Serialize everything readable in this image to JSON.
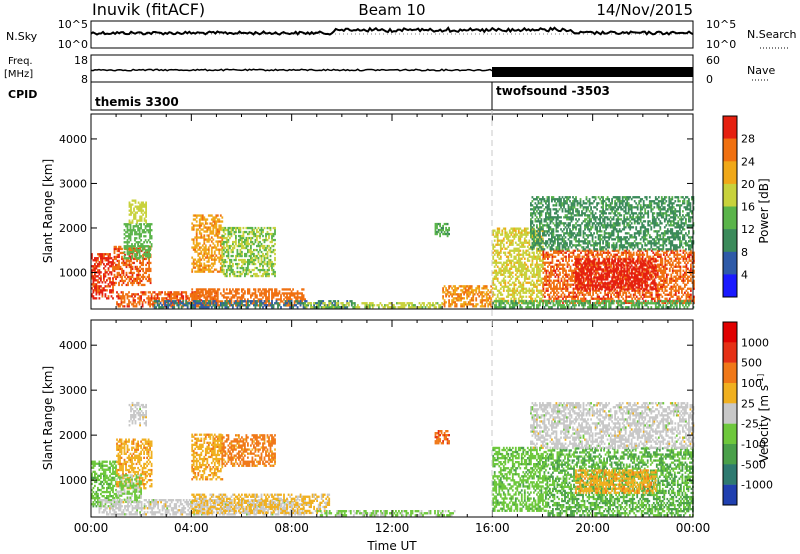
{
  "header": {
    "station": "Inuvik (fitACF)",
    "beam": "Beam 10",
    "date": "14/Nov/2015"
  },
  "strip_panels": {
    "noise": {
      "left_label": "N.Sky",
      "right_label": "N.Search",
      "left_ticks": [
        "10^5",
        "10^0"
      ],
      "right_ticks": [
        "10^5",
        "10^0"
      ]
    },
    "freq": {
      "left_label_1": "Freq.",
      "left_label_2": "[MHz]",
      "right_label": "Nave",
      "left_ticks": [
        "18",
        "8"
      ],
      "right_ticks": [
        "60",
        "0"
      ]
    },
    "cpid": {
      "label": "CPID",
      "segments": [
        "themis 3300",
        "twofsound -3503"
      ]
    }
  },
  "x_axis": {
    "label": "Time UT",
    "ticks": [
      "00:00",
      "04:00",
      "08:00",
      "12:00",
      "16:00",
      "20:00",
      "00:00"
    ]
  },
  "chart_data": [
    {
      "type": "heatmap",
      "title": "",
      "xlabel": "Time UT",
      "ylabel": "Slant Range [km]",
      "xlim": [
        0,
        24
      ],
      "ylim": [
        180,
        4560
      ],
      "yticks": [
        "1000",
        "2000",
        "3000",
        "4000"
      ],
      "colorbar": {
        "label": "Power [dB]",
        "range": [
          0,
          32
        ],
        "ticks": [
          "4",
          "8",
          "12",
          "16",
          "20",
          "24",
          "28"
        ],
        "colors": [
          "#1a1aff",
          "#2e5aa8",
          "#3b8a5a",
          "#5ab44a",
          "#c8d23c",
          "#f0a818",
          "#f07010",
          "#e52010"
        ]
      },
      "regions": [
        {
          "t0": 0.0,
          "t1": 0.9,
          "r0": 400,
          "r1": 1400,
          "value": 29
        },
        {
          "t0": 0.9,
          "t1": 2.4,
          "r0": 700,
          "r1": 1600,
          "value": 27
        },
        {
          "t0": 1.3,
          "t1": 2.4,
          "r0": 1300,
          "r1": 2100,
          "value": 14
        },
        {
          "t0": 1.5,
          "t1": 2.2,
          "r0": 2100,
          "r1": 2600,
          "value": 18
        },
        {
          "t0": 4.0,
          "t1": 5.2,
          "r0": 1000,
          "r1": 2300,
          "value": 23
        },
        {
          "t0": 5.2,
          "t1": 7.3,
          "r0": 900,
          "r1": 2000,
          "value": 16
        },
        {
          "t0": 1.0,
          "t1": 5.0,
          "r0": 220,
          "r1": 560,
          "value": 27
        },
        {
          "t0": 4.0,
          "t1": 8.5,
          "r0": 240,
          "r1": 620,
          "value": 26
        },
        {
          "t0": 2.5,
          "t1": 10.5,
          "r0": 200,
          "r1": 380,
          "value": 8
        },
        {
          "t0": 8.5,
          "t1": 14.0,
          "r0": 200,
          "r1": 330,
          "value": 17
        },
        {
          "t0": 14.0,
          "t1": 16.0,
          "r0": 220,
          "r1": 700,
          "value": 24
        },
        {
          "t0": 13.7,
          "t1": 14.3,
          "r0": 1800,
          "r1": 2100,
          "value": 13
        },
        {
          "t0": 16.0,
          "t1": 18.0,
          "r0": 300,
          "r1": 2000,
          "value": 19
        },
        {
          "t0": 18.0,
          "t1": 24.0,
          "r0": 300,
          "r1": 1500,
          "value": 27
        },
        {
          "t0": 19.3,
          "t1": 22.5,
          "r0": 600,
          "r1": 1300,
          "value": 31
        },
        {
          "t0": 17.5,
          "t1": 24.0,
          "r0": 1500,
          "r1": 2700,
          "value": 11
        },
        {
          "t0": 16.0,
          "t1": 24.0,
          "r0": 200,
          "r1": 380,
          "value": 13
        }
      ]
    },
    {
      "type": "heatmap",
      "title": "",
      "xlabel": "Time UT",
      "ylabel": "Slant Range [km]",
      "xlim": [
        0,
        24
      ],
      "ylim": [
        180,
        4560
      ],
      "yticks": [
        "1000",
        "2000",
        "3000",
        "4000"
      ],
      "colorbar": {
        "label": "Velocity [m s^-1]",
        "range": [
          -1200,
          1200
        ],
        "ticks": [
          "1000",
          "500",
          "100",
          "25",
          "-25",
          "-100",
          "-500",
          "-1000"
        ],
        "colors": [
          "#2040b0",
          "#2e7a70",
          "#4aa04a",
          "#6ec83c",
          "#c8c8c8",
          "#f0b020",
          "#f07818",
          "#e53015",
          "#e00000"
        ]
      },
      "regions": [
        {
          "t0": 0.0,
          "t1": 1.0,
          "r0": 400,
          "r1": 1400,
          "value": -300
        },
        {
          "t0": 1.0,
          "t1": 2.4,
          "r0": 800,
          "r1": 1900,
          "value": 300
        },
        {
          "t0": 1.0,
          "t1": 2.0,
          "r0": 500,
          "r1": 1100,
          "value": -200
        },
        {
          "t0": 1.5,
          "t1": 2.2,
          "r0": 2200,
          "r1": 2700,
          "value": 0
        },
        {
          "t0": 4.0,
          "t1": 5.2,
          "r0": 1000,
          "r1": 2000,
          "value": 300
        },
        {
          "t0": 5.2,
          "t1": 7.3,
          "r0": 1300,
          "r1": 2000,
          "value": 500
        },
        {
          "t0": 0.3,
          "t1": 8.5,
          "r0": 220,
          "r1": 560,
          "value": 0
        },
        {
          "t0": 4.0,
          "t1": 9.5,
          "r0": 250,
          "r1": 700,
          "value": 200
        },
        {
          "t0": 9.0,
          "t1": 14.5,
          "r0": 200,
          "r1": 320,
          "value": -200
        },
        {
          "t0": 13.7,
          "t1": 14.3,
          "r0": 1800,
          "r1": 2100,
          "value": 600
        },
        {
          "t0": 16.0,
          "t1": 18.2,
          "r0": 300,
          "r1": 1700,
          "value": -300
        },
        {
          "t0": 18.2,
          "t1": 24.0,
          "r0": 200,
          "r1": 1700,
          "value": -400
        },
        {
          "t0": 19.3,
          "t1": 22.5,
          "r0": 700,
          "r1": 1200,
          "value": 300
        },
        {
          "t0": 17.5,
          "t1": 24.0,
          "r0": 1700,
          "r1": 2700,
          "value": 0
        }
      ]
    }
  ]
}
